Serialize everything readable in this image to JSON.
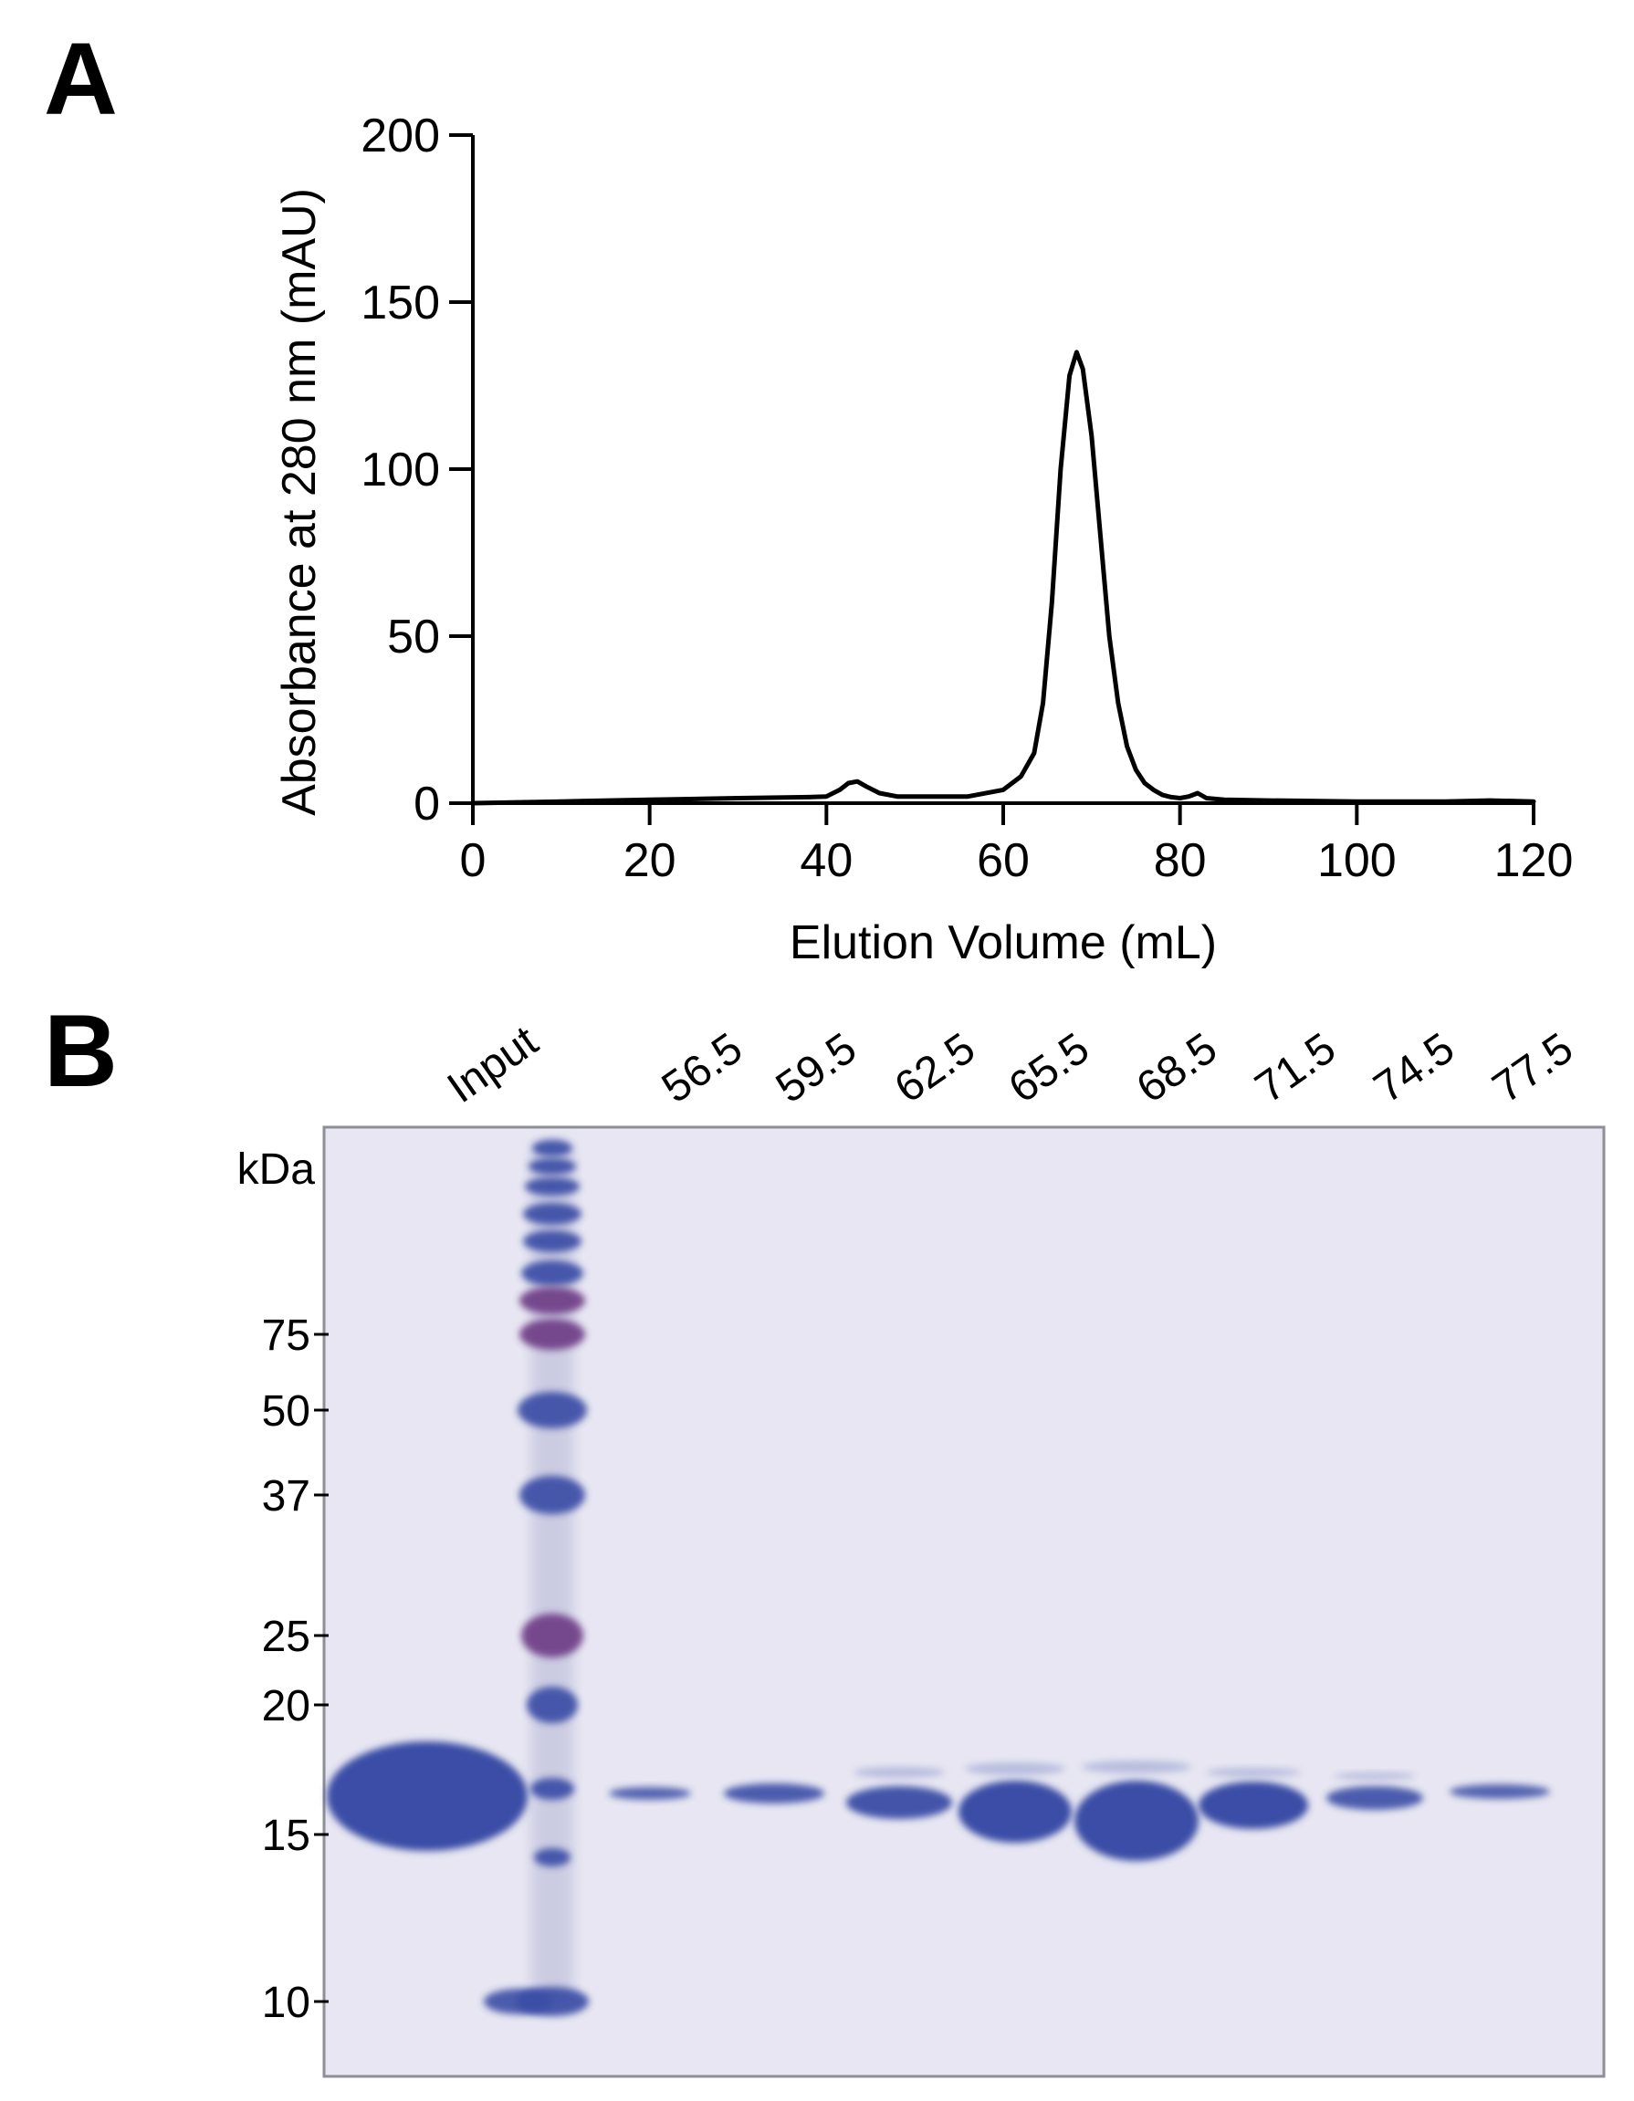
{
  "panels": {
    "a_label": "A",
    "b_label": "B"
  },
  "chart_data": [
    {
      "type": "line",
      "xlabel": "Elution Volume (mL)",
      "ylabel": "Absorbance at 280 nm (mAU)",
      "xlim": [
        0,
        120
      ],
      "ylim": [
        0,
        200
      ],
      "xticks": [
        0,
        20,
        40,
        60,
        80,
        100,
        120
      ],
      "yticks": [
        0,
        50,
        100,
        150,
        200
      ],
      "grid": false,
      "series": [
        {
          "x": [
            0,
            10,
            20,
            30,
            38,
            40,
            41.5,
            42.5,
            43.5,
            44.5,
            46,
            48,
            52,
            56,
            60,
            62,
            63.5,
            64.5,
            65.5,
            66.5,
            67.5,
            68.3,
            69,
            70,
            71,
            72,
            73,
            74,
            75,
            76,
            77,
            78,
            79,
            80,
            81,
            82,
            83,
            85,
            90,
            100,
            110,
            115,
            120
          ],
          "y": [
            0,
            0.5,
            1,
            1.5,
            1.8,
            2,
            4,
            6,
            6.5,
            5,
            3,
            2,
            2,
            2,
            4,
            8,
            15,
            30,
            60,
            100,
            128,
            135,
            130,
            110,
            80,
            50,
            30,
            17,
            10,
            6,
            4,
            2.5,
            1.8,
            1.5,
            2,
            3,
            1.5,
            1,
            0.8,
            0.5,
            0.5,
            0.8,
            0.5
          ]
        }
      ]
    },
    {
      "type": "table",
      "mw_unit": "kDa",
      "lanes": [
        "Input",
        "",
        "56.5",
        "59.5",
        "62.5",
        "65.5",
        "68.5",
        "71.5",
        "74.5",
        "77.5"
      ],
      "mw_markers": [
        "75",
        "50",
        "37",
        "25",
        "20",
        "15",
        "10"
      ],
      "gel_colors": {
        "background": "#e7e6f2",
        "band": "#3a4ea6",
        "marker_purple": "#6e3d86"
      }
    }
  ]
}
